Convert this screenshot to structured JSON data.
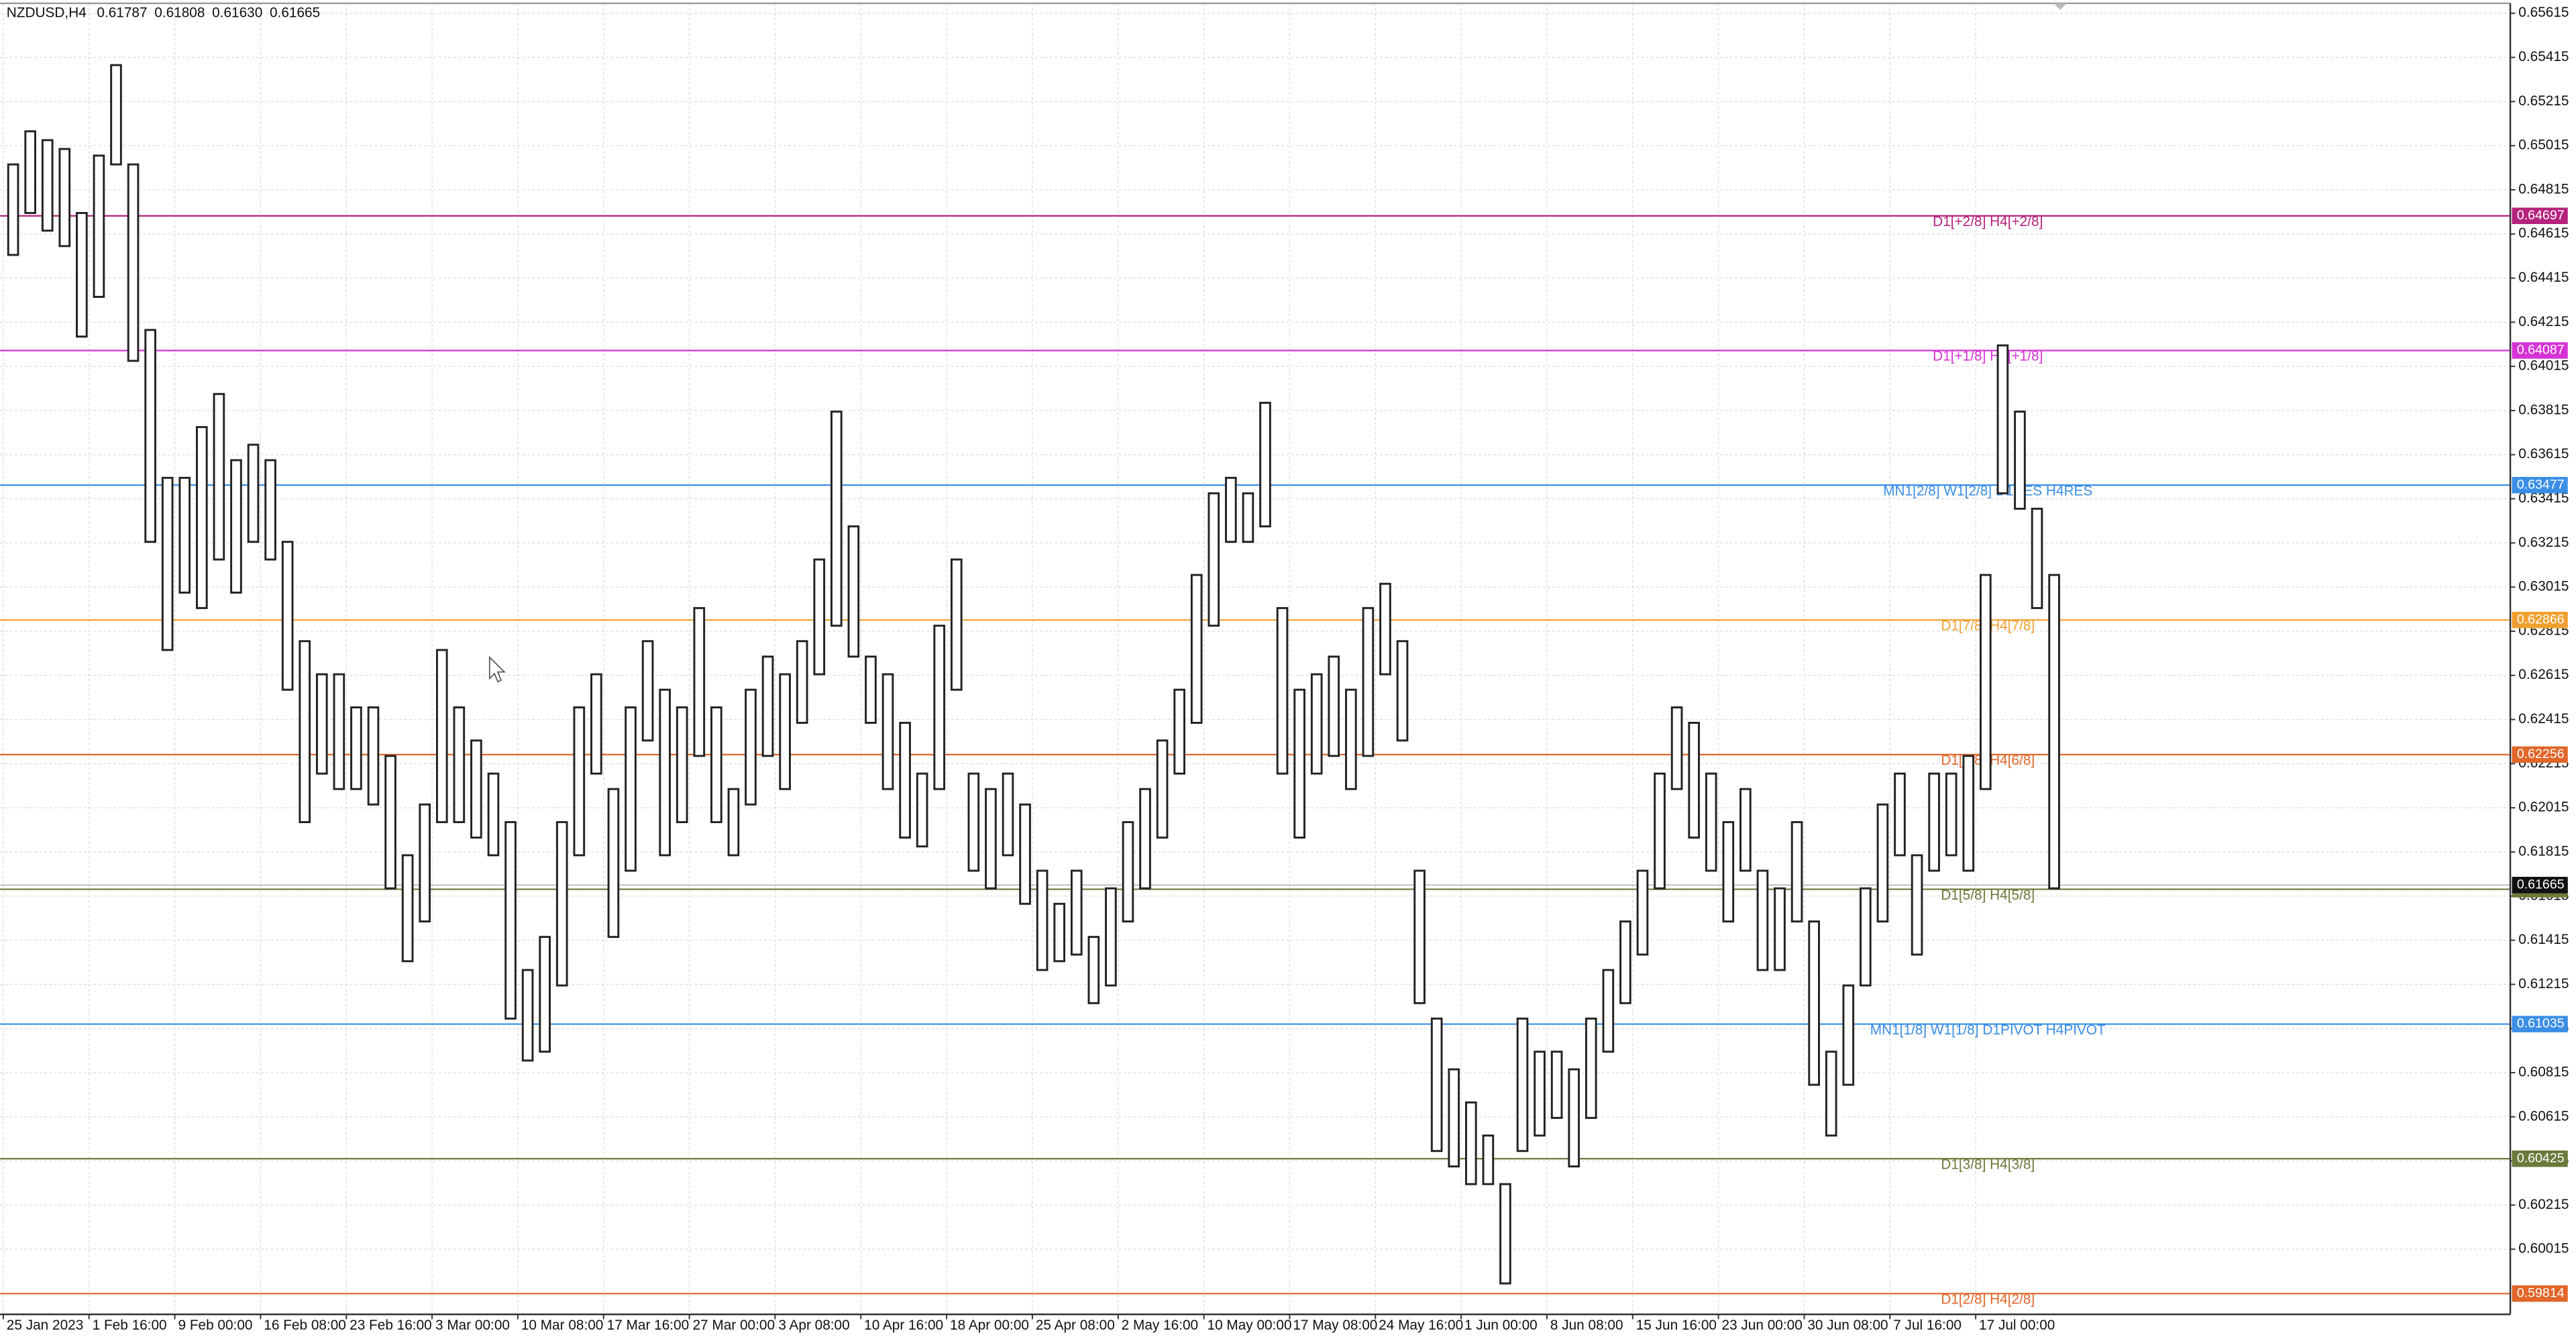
{
  "chart_data": {
    "type": "hilo",
    "symbol": "NZDUSD,H4",
    "ohlc": [
      0.61787,
      0.61808,
      {
        "value": 0.6163,
        "label": "0.61630"
      },
      0.61665
    ],
    "price": 0.61665,
    "color": "#222222",
    "grid": true,
    "ylim": [
      0.5972,
      0.6566
    ],
    "yticks": [
      0.65615,
      0.65415,
      0.65215,
      0.65015,
      0.64815,
      0.64615,
      0.64415,
      0.64215,
      0.64015,
      0.63815,
      0.63615,
      0.63415,
      0.63215,
      0.63015,
      0.62815,
      0.62615,
      0.62415,
      0.62215,
      0.62015,
      0.61815,
      0.61615,
      0.61415,
      0.61215,
      0.61015,
      0.60815,
      0.60615,
      0.60415,
      0.60215,
      0.60015
    ],
    "categories": [
      "25 Jan 2023",
      null,
      null,
      null,
      null,
      "1 Feb 16:00",
      null,
      null,
      null,
      null,
      "9 Feb 00:00",
      null,
      null,
      null,
      null,
      "16 Feb 08:00",
      null,
      null,
      null,
      null,
      "23 Feb 16:00",
      null,
      null,
      null,
      null,
      "3 Mar 00:00",
      null,
      null,
      null,
      null,
      "10 Mar 08:00",
      null,
      null,
      null,
      null,
      "17 Mar 16:00",
      null,
      null,
      null,
      null,
      "27 Mar 00:00",
      null,
      null,
      null,
      null,
      "3 Apr 08:00",
      null,
      null,
      null,
      null,
      "10 Apr 16:00",
      null,
      null,
      null,
      null,
      "18 Apr 00:00",
      null,
      null,
      null,
      null,
      "25 Apr 08:00",
      null,
      null,
      null,
      null,
      "2 May 16:00",
      null,
      null,
      null,
      null,
      "10 May 00:00",
      null,
      null,
      null,
      null,
      "17 May 08:00",
      null,
      null,
      null,
      null,
      "24 May 16:00",
      null,
      null,
      null,
      null,
      "1 Jun 00:00",
      null,
      null,
      null,
      null,
      "8 Jun 08:00",
      null,
      null,
      null,
      null,
      "15 Jun 16:00",
      null,
      null,
      null,
      null,
      "23 Jun 00:00",
      null,
      null,
      null,
      null,
      "30 Jun 08:00",
      null,
      null,
      null,
      null,
      "7 Jul 16:00",
      null,
      null,
      null,
      null,
      "17 Jul 00:00",
      null,
      null,
      null,
      null
    ],
    "high": [
      0.6493,
      0.6508,
      0.6504,
      0.65,
      0.6471,
      0.6497,
      0.6538,
      0.6493,
      0.6418,
      0.6351,
      0.6351,
      0.6374,
      0.6389,
      0.6359,
      0.6366,
      0.6359,
      0.6322,
      0.6277,
      0.6262,
      0.6262,
      0.6247,
      0.6247,
      0.6225,
      0.618,
      0.6203,
      0.6273,
      0.6247,
      0.6232,
      0.6217,
      0.6195,
      0.6128,
      0.6143,
      0.6195,
      0.6247,
      0.6262,
      0.621,
      0.6247,
      0.6277,
      0.6255,
      0.6247,
      0.6292,
      0.6247,
      0.621,
      0.6255,
      0.627,
      0.6262,
      0.6277,
      0.6314,
      0.6381,
      0.6329,
      0.627,
      0.6262,
      0.624,
      0.6217,
      0.6284,
      0.6314,
      0.6217,
      0.621,
      0.6217,
      0.6203,
      0.6173,
      0.6158,
      0.6173,
      0.6143,
      0.6165,
      0.6195,
      0.621,
      0.6232,
      0.6255,
      0.6307,
      0.6344,
      0.6351,
      0.6344,
      0.6385,
      0.6292,
      0.6255,
      0.6262,
      0.627,
      0.6255,
      0.6292,
      0.6303,
      0.6277,
      0.6173,
      0.6106,
      0.6083,
      0.6068,
      0.6053,
      0.6031,
      0.6106,
      0.6091,
      0.6091,
      0.6083,
      0.6106,
      0.6128,
      0.615,
      0.6173,
      0.6217,
      0.6247,
      0.624,
      0.6217,
      0.6195,
      0.621,
      0.6173,
      0.6165,
      0.6195,
      0.615,
      0.6091,
      0.6121,
      0.6165,
      0.6203,
      0.6217,
      0.618,
      0.6217,
      0.6217,
      0.6225,
      0.6307,
      0.6411,
      0.6381,
      0.6337,
      0.6307
    ],
    "low": [
      0.6452,
      0.6471,
      0.6463,
      0.6456,
      0.6415,
      0.6433,
      0.6493,
      0.6404,
      0.6322,
      0.6273,
      0.6299,
      0.6292,
      0.6314,
      0.6299,
      0.6322,
      0.6314,
      0.6255,
      0.6195,
      0.6217,
      0.621,
      0.621,
      0.6203,
      0.6165,
      0.6132,
      0.615,
      0.6195,
      0.6195,
      0.6188,
      0.618,
      0.6106,
      0.6087,
      0.6091,
      0.6121,
      0.618,
      0.6217,
      0.6143,
      0.6173,
      0.6232,
      0.618,
      0.6195,
      0.6225,
      0.6195,
      0.618,
      0.6203,
      0.6225,
      0.621,
      0.624,
      0.6262,
      0.6284,
      0.627,
      0.624,
      0.621,
      0.6188,
      0.6184,
      0.621,
      0.6255,
      0.6173,
      0.6165,
      0.618,
      0.6158,
      0.6128,
      0.6132,
      0.6135,
      0.6113,
      0.6121,
      0.615,
      0.6165,
      0.6188,
      0.6217,
      0.624,
      0.6284,
      0.6322,
      0.6322,
      0.6329,
      0.6217,
      0.6188,
      0.6217,
      0.6225,
      0.621,
      0.6225,
      0.6262,
      0.6232,
      0.6113,
      0.6046,
      0.6039,
      0.6031,
      0.6031,
      0.5986,
      0.6046,
      0.6053,
      0.6061,
      0.6039,
      0.6061,
      0.6091,
      0.6113,
      0.6135,
      0.6165,
      0.621,
      0.6188,
      0.6173,
      0.615,
      0.6173,
      0.6128,
      0.6128,
      0.615,
      0.6076,
      0.6053,
      0.6076,
      0.6121,
      0.615,
      0.618,
      0.6135,
      0.6173,
      0.618,
      0.6173,
      0.621,
      0.6344,
      0.6337,
      0.6292,
      0.6165
    ],
    "levels": [
      {
        "value": 0.64697,
        "label": "D1[+2/8] H4[+2/8]",
        "color": "#b5237e"
      },
      {
        "value": 0.64087,
        "label": "D1[+1/8] H4[+1/8]",
        "color": "#d633d6"
      },
      {
        "value": 0.63477,
        "label": "MN1[2/8] W1[2/8] D1RES H4RES",
        "color": "#3a8ee6"
      },
      {
        "value": 0.62866,
        "label": "D1[7/8] H4[7/8]",
        "color": "#f0a030"
      },
      {
        "value": 0.62256,
        "label": "D1[6/8] H4[6/8]",
        "color": "#e0662a"
      },
      {
        "value": 0.61646,
        "label": "D1[5/8] H4[5/8]",
        "color": "#6b7a3a"
      },
      {
        "value": 0.61035,
        "label": "MN1[1/8] W1[1/8] D1PIVOT H4PIVOT",
        "color": "#3a8ee6"
      },
      {
        "value": 0.60425,
        "label": "D1[3/8] H4[3/8]",
        "color": "#6b7a3a"
      },
      {
        "value": 0.59814,
        "label": "D1[2/8] H4[2/8]",
        "color": "#e0662a"
      }
    ]
  }
}
